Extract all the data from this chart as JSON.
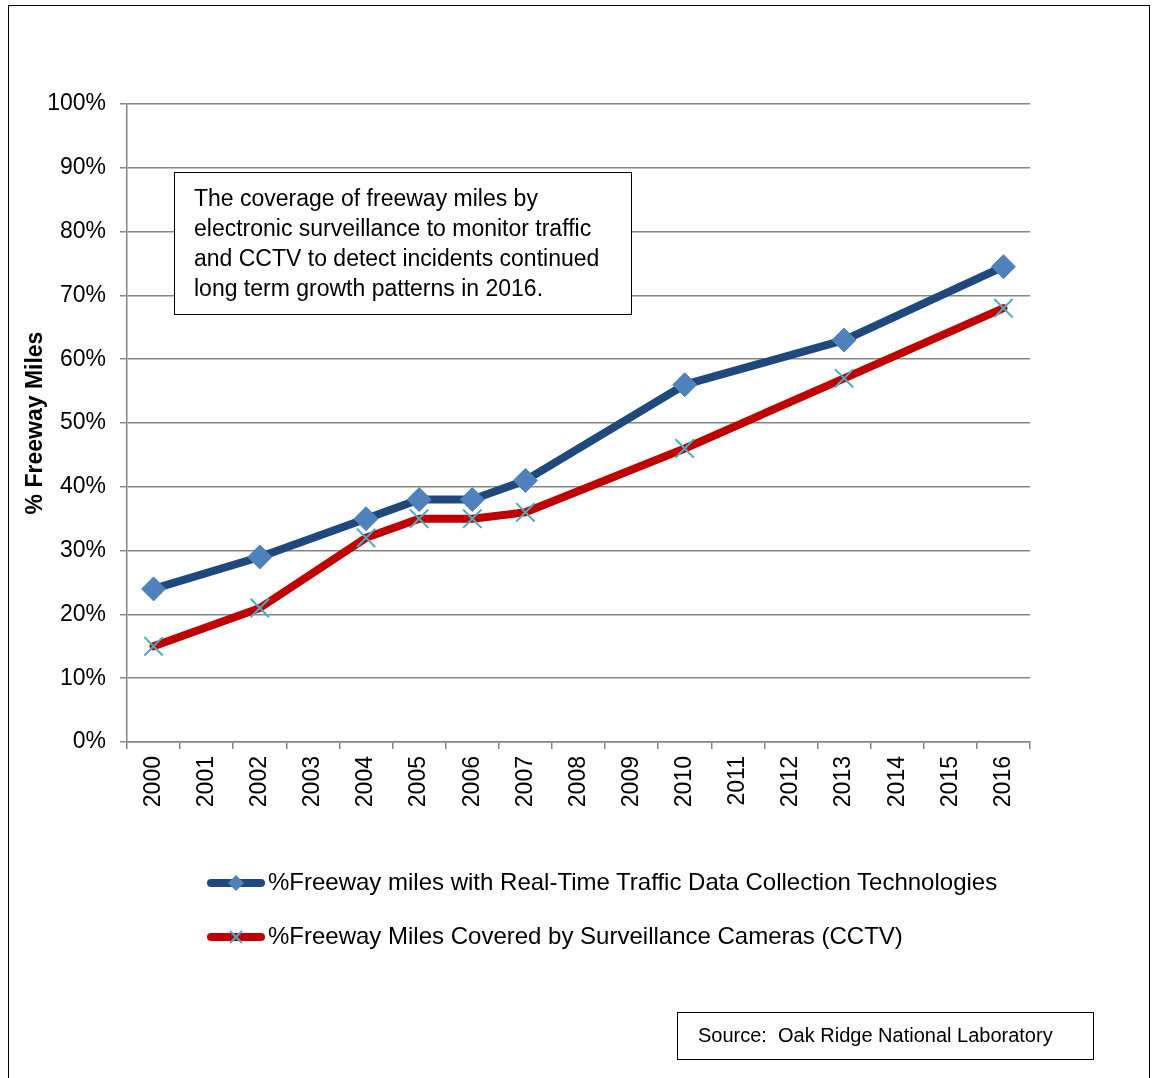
{
  "chart_data": {
    "type": "line",
    "ylabel": "% Freeway Miles",
    "categories": [
      "2000",
      "2001",
      "2002",
      "2003",
      "2004",
      "2005",
      "2006",
      "2007",
      "2008",
      "2009",
      "2010",
      "2011",
      "2012",
      "2013",
      "2014",
      "2015",
      "2016"
    ],
    "series": [
      {
        "name": "%Freeway miles with Real-Time Traffic Data Collection Technologies",
        "color": "#1f497d",
        "marker": "diamond",
        "values": [
          24,
          null,
          29,
          null,
          35,
          38,
          38,
          41,
          null,
          null,
          56,
          null,
          null,
          63,
          null,
          null,
          74.5
        ]
      },
      {
        "name": "%Freeway Miles Covered by Surveillance Cameras (CCTV)",
        "color": "#c00000",
        "marker": "cross",
        "values": [
          15,
          null,
          21,
          null,
          32,
          35,
          35,
          36,
          null,
          null,
          46,
          null,
          null,
          57,
          null,
          null,
          68
        ]
      }
    ],
    "ylim": [
      0,
      100
    ],
    "yticks": [
      {
        "value": 0,
        "label": "0%"
      },
      {
        "value": 10,
        "label": "10%"
      },
      {
        "value": 20,
        "label": "20%"
      },
      {
        "value": 30,
        "label": "30%"
      },
      {
        "value": 40,
        "label": "40%"
      },
      {
        "value": 50,
        "label": "50%"
      },
      {
        "value": 60,
        "label": "60%"
      },
      {
        "value": 70,
        "label": "70%"
      },
      {
        "value": 80,
        "label": "80%"
      },
      {
        "value": 90,
        "label": "90%"
      },
      {
        "value": 100,
        "label": "100%"
      }
    ],
    "grid": "y",
    "legend": "bottom",
    "line_style": "solid",
    "annotations": [
      "The coverage of freeway miles by electronic surveillance to monitor traffic and CCTV to detect incidents continued long term growth patterns in 2016.",
      "Source:  Oak Ridge National Laboratory"
    ]
  }
}
